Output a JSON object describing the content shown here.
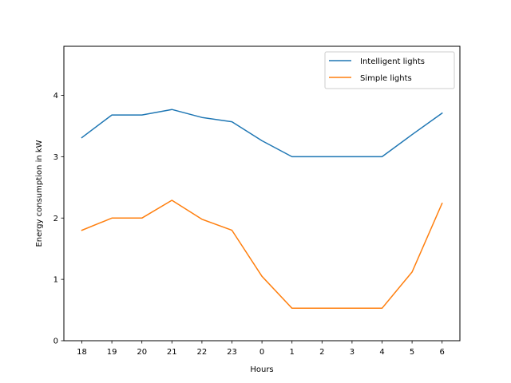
{
  "chart_data": {
    "type": "line",
    "title": "",
    "xlabel": "Hours",
    "ylabel": "Energy consumption in kW",
    "categories": [
      "18",
      "19",
      "20",
      "21",
      "22",
      "23",
      "0",
      "1",
      "2",
      "3",
      "4",
      "5",
      "6"
    ],
    "ylim": [
      0,
      4.8
    ],
    "yticks": [
      "0",
      "1",
      "2",
      "3",
      "4"
    ],
    "grid": false,
    "legend_position": "top-right",
    "series": [
      {
        "name": "Intelligent lights",
        "color": "#1f77b4",
        "values": [
          3.31,
          3.68,
          3.68,
          3.77,
          3.64,
          3.57,
          3.26,
          3.0,
          3.0,
          3.0,
          3.0,
          3.36,
          3.71
        ]
      },
      {
        "name": "Simple lights",
        "color": "#ff7f0e",
        "values": [
          1.8,
          2.0,
          2.0,
          2.29,
          1.98,
          1.8,
          1.05,
          0.53,
          0.53,
          0.53,
          0.53,
          1.12,
          2.24
        ]
      }
    ]
  }
}
